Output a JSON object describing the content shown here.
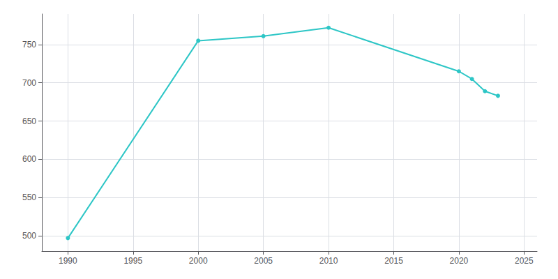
{
  "chart_data": {
    "type": "line",
    "x": [
      1990,
      2000,
      2005,
      2010,
      2020,
      2021,
      2022,
      2023
    ],
    "values": [
      497,
      755,
      761,
      772,
      715,
      705,
      689,
      683
    ],
    "color": "#2DC6C6",
    "marker": "circle",
    "xlim": [
      1988,
      2026
    ],
    "ylim": [
      480,
      790
    ],
    "xticks": [
      1990,
      1995,
      2000,
      2005,
      2010,
      2015,
      2020,
      2025
    ],
    "yticks": [
      500,
      550,
      600,
      650,
      700,
      750
    ],
    "grid": true
  }
}
